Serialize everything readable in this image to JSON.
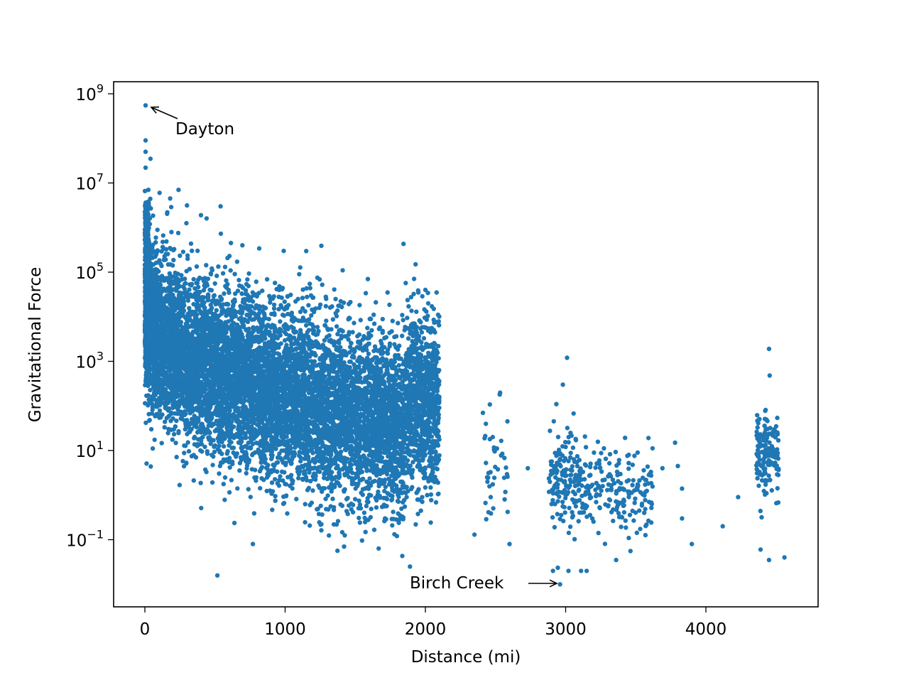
{
  "chart_data": {
    "type": "scatter",
    "title": "",
    "xlabel": "Distance (mi)",
    "ylabel": "Gravitational Force",
    "xscale": "linear",
    "yscale": "log",
    "xlim": [
      -220,
      4780
    ],
    "ylim_log10": [
      -2.95,
      9.27
    ],
    "xticks": [
      0,
      1000,
      2000,
      3000,
      4000
    ],
    "xtick_labels": [
      "0",
      "1000",
      "2000",
      "3000",
      "4000"
    ],
    "yticks_log10": [
      -1,
      1,
      3,
      5,
      7,
      9
    ],
    "ytick_labels": [
      {
        "base": "10",
        "exp": "−1"
      },
      {
        "base": "10",
        "exp": "1"
      },
      {
        "base": "10",
        "exp": "3"
      },
      {
        "base": "10",
        "exp": "5"
      },
      {
        "base": "10",
        "exp": "7"
      },
      {
        "base": "10",
        "exp": "9"
      }
    ],
    "grid": false,
    "legend": null,
    "marker_color": "#1f77b4",
    "annotations": [
      {
        "text": "Dayton",
        "point": [
          5,
          550000000
        ],
        "text_pos": [
          220,
          130000000
        ]
      },
      {
        "text": "Birch Creek",
        "point": [
          2960,
          0.01
        ],
        "text_pos": [
          1880,
          0.01
        ]
      }
    ],
    "dense_clusters": [
      {
        "x_range": [
          0,
          2100
        ],
        "description": "Dense cloud: force decays from ~1e5-1e8 near 0 mi to ~1e0-1e4 near 2000 mi",
        "count_approx": 40000
      },
      {
        "x_range": [
          2400,
          2600
        ],
        "description": "Sparse column, force ~0.3-100",
        "count_approx": 40
      },
      {
        "x_range": [
          2900,
          3600
        ],
        "description": "Sparse cluster, force ~0.02-100",
        "count_approx": 300
      },
      {
        "x_range": [
          4350,
          4520
        ],
        "description": "Column near 4400-4500 mi, force ~0.05-100",
        "count_approx": 150
      }
    ],
    "outliers": [
      {
        "x": 5,
        "y": 550000000
      },
      {
        "x": 5,
        "y": 90000000
      },
      {
        "x": 5,
        "y": 50000000
      },
      {
        "x": 40,
        "y": 35000000
      },
      {
        "x": 5,
        "y": 22000000
      },
      {
        "x": 25,
        "y": 7000000
      },
      {
        "x": 240,
        "y": 7000000
      },
      {
        "x": 105,
        "y": 6000000
      },
      {
        "x": 180,
        "y": 4500000
      },
      {
        "x": 540,
        "y": 3000000
      },
      {
        "x": 160,
        "y": 2200000
      },
      {
        "x": 400,
        "y": 1900000
      },
      {
        "x": 440,
        "y": 1600000
      },
      {
        "x": 695,
        "y": 400000
      },
      {
        "x": 815,
        "y": 340000
      },
      {
        "x": 990,
        "y": 300000
      },
      {
        "x": 480,
        "y": 110000
      },
      {
        "x": 1100,
        "y": 90000
      },
      {
        "x": 1230,
        "y": 75000
      },
      {
        "x": 1410,
        "y": 110000
      },
      {
        "x": 1590,
        "y": 70000
      },
      {
        "x": 1930,
        "y": 150000
      },
      {
        "x": 1950,
        "y": 35000
      },
      {
        "x": 2000,
        "y": 40000
      },
      {
        "x": 2080,
        "y": 35000
      },
      {
        "x": 1730,
        "y": 35000
      },
      {
        "x": 1360,
        "y": 25000
      },
      {
        "x": 1290,
        "y": 28000
      },
      {
        "x": 2020,
        "y": 20000
      },
      {
        "x": 2410,
        "y": 70
      },
      {
        "x": 2530,
        "y": 180
      },
      {
        "x": 2585,
        "y": 45
      },
      {
        "x": 2460,
        "y": 18
      },
      {
        "x": 2480,
        "y": 20
      },
      {
        "x": 2440,
        "y": 2.5
      },
      {
        "x": 2565,
        "y": 0.8
      },
      {
        "x": 2600,
        "y": 0.08
      },
      {
        "x": 2730,
        "y": 4
      },
      {
        "x": 2350,
        "y": 0.13
      },
      {
        "x": 3010,
        "y": 1200
      },
      {
        "x": 2980,
        "y": 300
      },
      {
        "x": 3240,
        "y": 5
      },
      {
        "x": 3450,
        "y": 8
      },
      {
        "x": 3600,
        "y": 3
      },
      {
        "x": 3690,
        "y": 4
      },
      {
        "x": 3780,
        "y": 15
      },
      {
        "x": 3800,
        "y": 4.5
      },
      {
        "x": 3830,
        "y": 1.4
      },
      {
        "x": 3830,
        "y": 0.3
      },
      {
        "x": 3900,
        "y": 0.08
      },
      {
        "x": 4120,
        "y": 0.2
      },
      {
        "x": 4230,
        "y": 0.9
      },
      {
        "x": 4450,
        "y": 1900
      },
      {
        "x": 4390,
        "y": 0.06
      },
      {
        "x": 4450,
        "y": 0.035
      },
      {
        "x": 4560,
        "y": 0.04
      },
      {
        "x": 2960,
        "y": 0.01
      },
      {
        "x": 2910,
        "y": 0.02
      },
      {
        "x": 3020,
        "y": 0.02
      },
      {
        "x": 3110,
        "y": 0.02
      },
      {
        "x": 3150,
        "y": 0.02
      },
      {
        "x": 3360,
        "y": 0.035
      },
      {
        "x": 1890,
        "y": 0.025
      },
      {
        "x": 1420,
        "y": 0.07
      },
      {
        "x": 770,
        "y": 0.08
      }
    ]
  }
}
